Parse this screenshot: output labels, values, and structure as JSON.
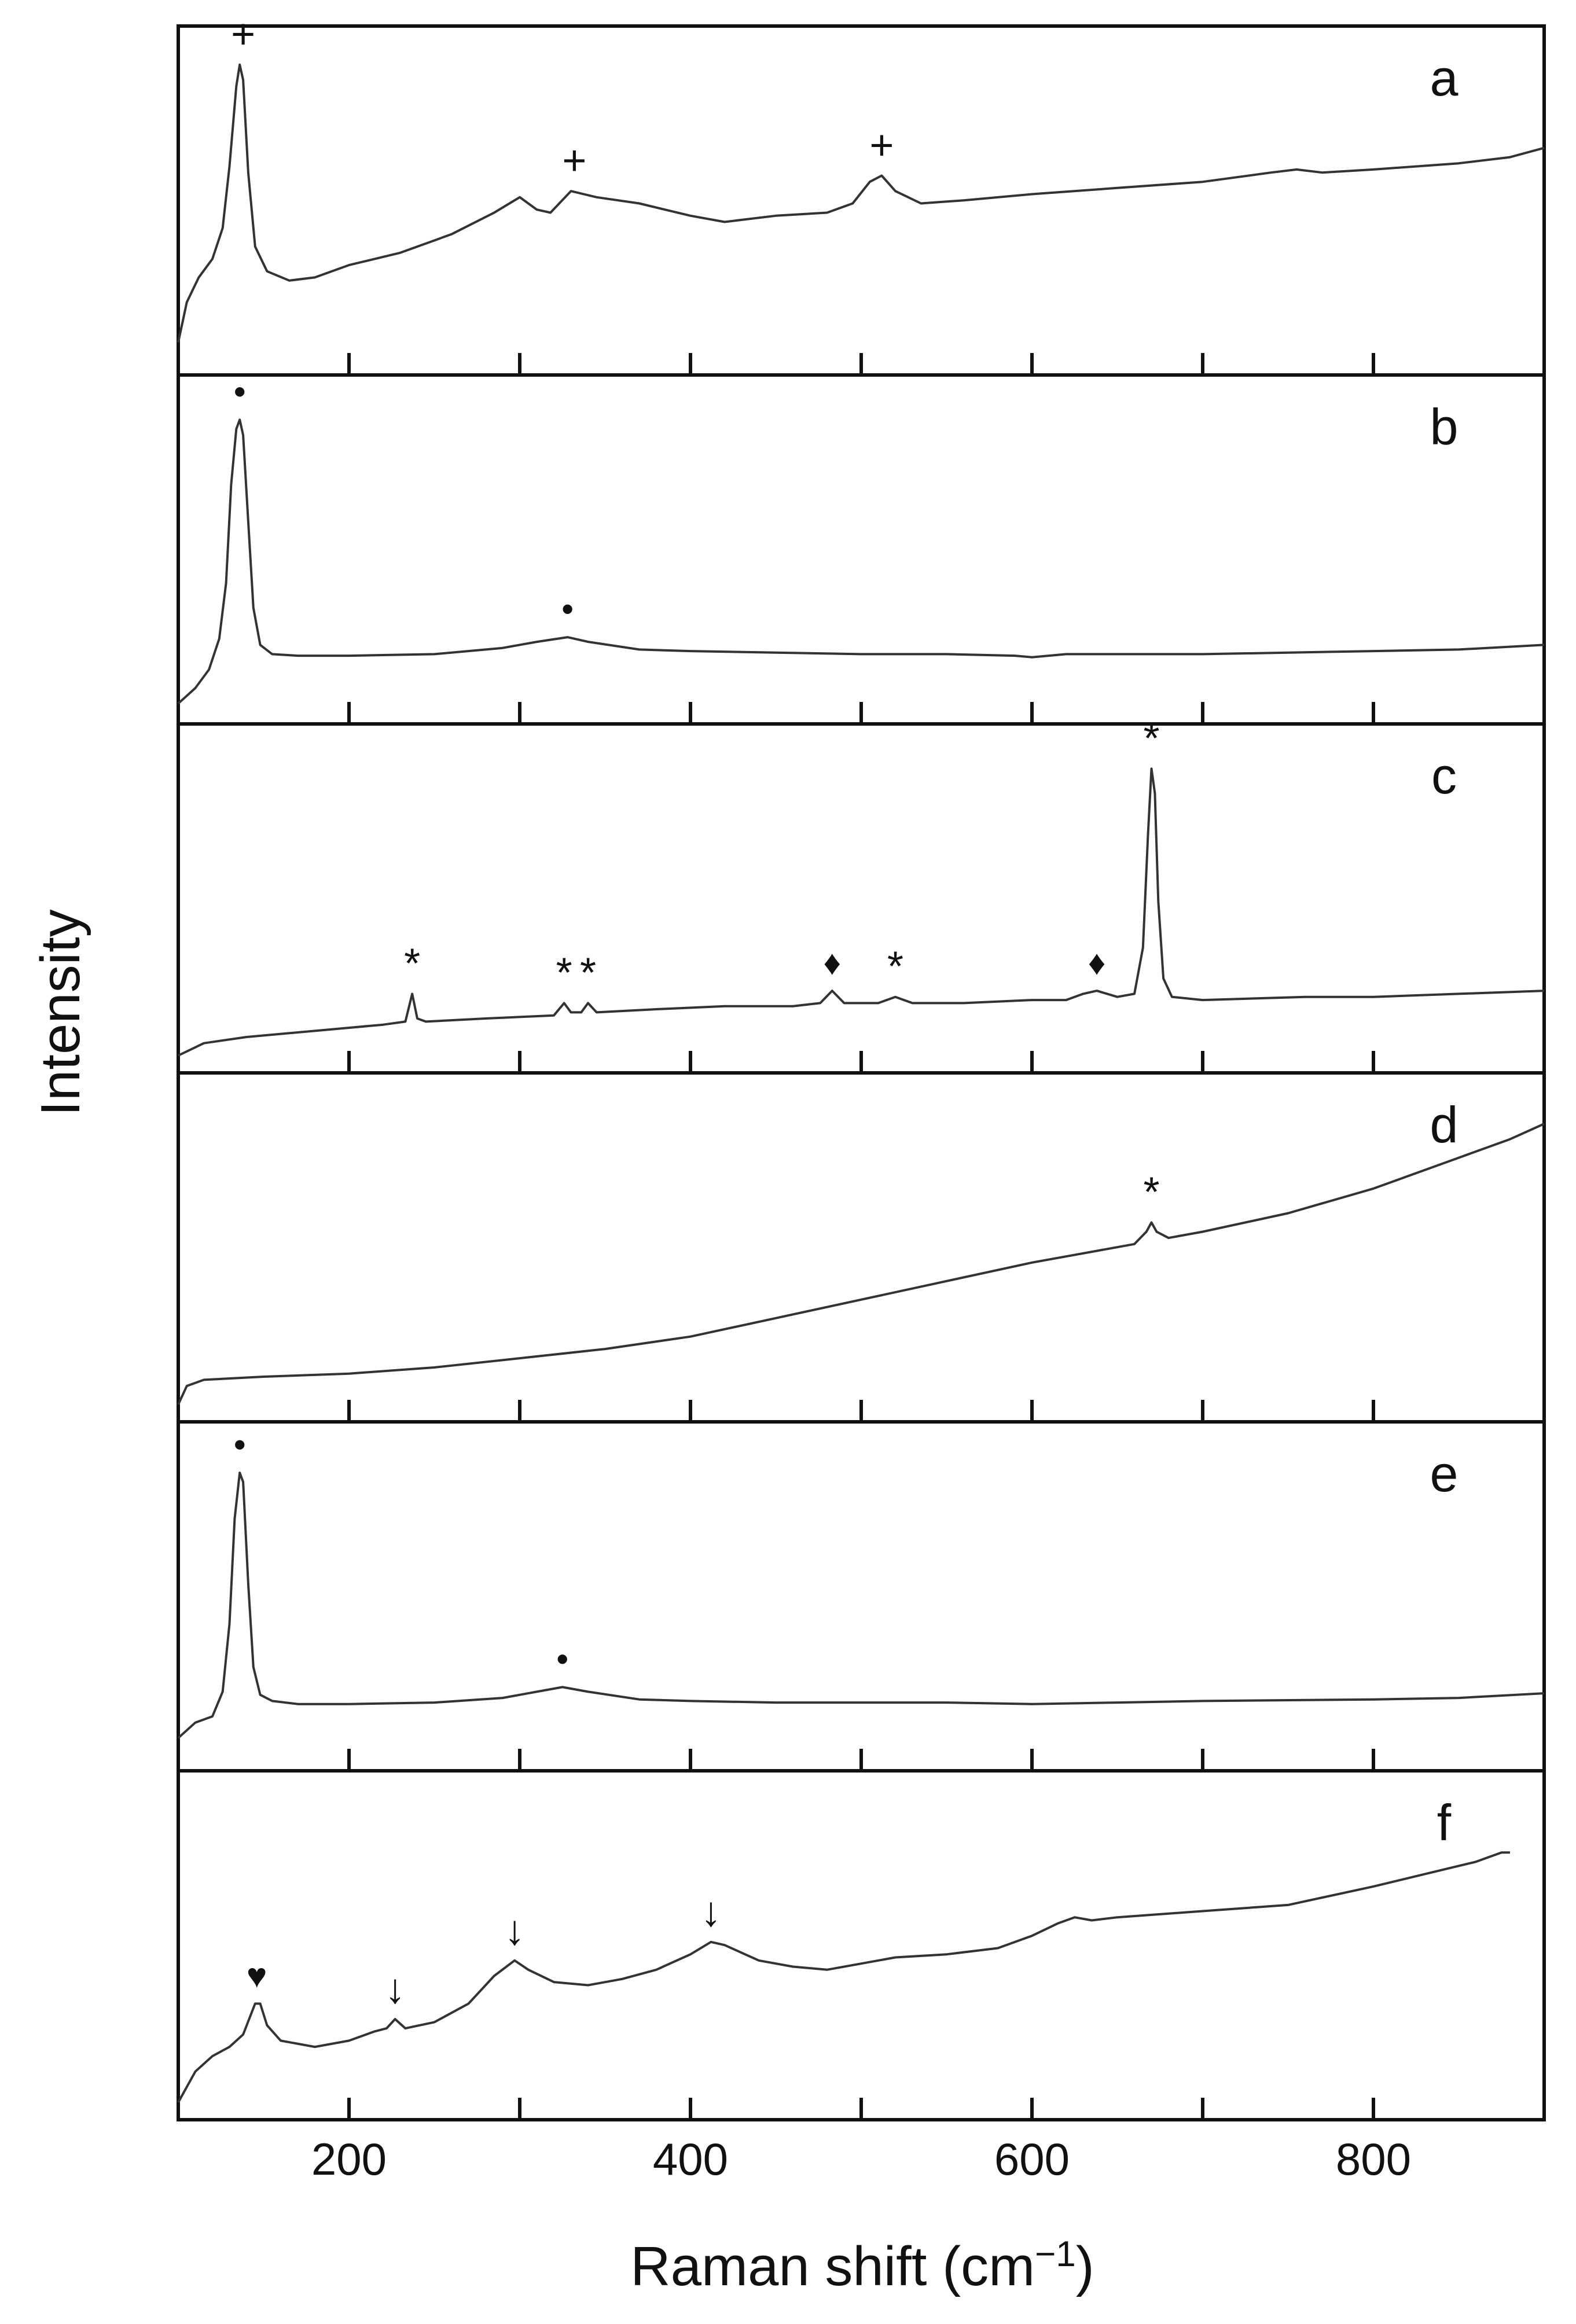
{
  "chart_data": {
    "type": "line",
    "xlabel": "Raman shift",
    "xlabel_unit": "(cm",
    "xlabel_unit_exponent": "−1",
    "ylabel": "Intensity",
    "xlim": [
      100,
      900
    ],
    "x_ticks": [
      200,
      400,
      600,
      800
    ],
    "x_minor_ticks": [
      100,
      200,
      300,
      400,
      500,
      600,
      700,
      800
    ],
    "grid": false,
    "legend": "none",
    "line_color": "#333333",
    "panels": [
      {
        "label": "a",
        "ylim": [
          0,
          1
        ],
        "points": [
          [
            100,
            0.05
          ],
          [
            105,
            0.18
          ],
          [
            112,
            0.26
          ],
          [
            120,
            0.32
          ],
          [
            126,
            0.42
          ],
          [
            130,
            0.62
          ],
          [
            134,
            0.88
          ],
          [
            136,
            0.95
          ],
          [
            138,
            0.9
          ],
          [
            141,
            0.6
          ],
          [
            145,
            0.36
          ],
          [
            152,
            0.28
          ],
          [
            165,
            0.25
          ],
          [
            180,
            0.26
          ],
          [
            200,
            0.3
          ],
          [
            230,
            0.34
          ],
          [
            260,
            0.4
          ],
          [
            285,
            0.47
          ],
          [
            300,
            0.52
          ],
          [
            310,
            0.48
          ],
          [
            318,
            0.47
          ],
          [
            330,
            0.54
          ],
          [
            345,
            0.52
          ],
          [
            370,
            0.5
          ],
          [
            400,
            0.46
          ],
          [
            420,
            0.44
          ],
          [
            450,
            0.46
          ],
          [
            480,
            0.47
          ],
          [
            495,
            0.5
          ],
          [
            505,
            0.57
          ],
          [
            512,
            0.59
          ],
          [
            520,
            0.54
          ],
          [
            535,
            0.5
          ],
          [
            560,
            0.51
          ],
          [
            600,
            0.53
          ],
          [
            650,
            0.55
          ],
          [
            700,
            0.57
          ],
          [
            740,
            0.6
          ],
          [
            755,
            0.61
          ],
          [
            770,
            0.6
          ],
          [
            800,
            0.61
          ],
          [
            850,
            0.63
          ],
          [
            880,
            0.65
          ],
          [
            900,
            0.68
          ]
        ],
        "peak_markers": [
          {
            "symbol": "+",
            "x": 138,
            "y": 0.95
          },
          {
            "symbol": "+",
            "x": 332,
            "y": 0.54
          },
          {
            "symbol": "+",
            "x": 512,
            "y": 0.59
          }
        ]
      },
      {
        "label": "b",
        "ylim": [
          0,
          1
        ],
        "points": [
          [
            100,
            0.01
          ],
          [
            110,
            0.06
          ],
          [
            118,
            0.12
          ],
          [
            124,
            0.22
          ],
          [
            128,
            0.4
          ],
          [
            131,
            0.72
          ],
          [
            134,
            0.9
          ],
          [
            136,
            0.93
          ],
          [
            138,
            0.88
          ],
          [
            141,
            0.6
          ],
          [
            144,
            0.32
          ],
          [
            148,
            0.2
          ],
          [
            155,
            0.17
          ],
          [
            170,
            0.165
          ],
          [
            200,
            0.165
          ],
          [
            250,
            0.17
          ],
          [
            290,
            0.19
          ],
          [
            310,
            0.21
          ],
          [
            328,
            0.225
          ],
          [
            340,
            0.21
          ],
          [
            370,
            0.185
          ],
          [
            400,
            0.18
          ],
          [
            450,
            0.175
          ],
          [
            500,
            0.17
          ],
          [
            550,
            0.17
          ],
          [
            590,
            0.165
          ],
          [
            600,
            0.16
          ],
          [
            620,
            0.17
          ],
          [
            700,
            0.17
          ],
          [
            800,
            0.18
          ],
          [
            850,
            0.185
          ],
          [
            900,
            0.2
          ]
        ],
        "peak_markers": [
          {
            "symbol": "•",
            "x": 136,
            "y": 0.93
          },
          {
            "symbol": "•",
            "x": 328,
            "y": 0.225
          }
        ]
      },
      {
        "label": "c",
        "ylim": [
          0,
          1
        ],
        "points": [
          [
            100,
            0.0
          ],
          [
            115,
            0.04
          ],
          [
            140,
            0.06
          ],
          [
            180,
            0.08
          ],
          [
            220,
            0.1
          ],
          [
            233,
            0.11
          ],
          [
            237,
            0.2
          ],
          [
            240,
            0.12
          ],
          [
            245,
            0.11
          ],
          [
            280,
            0.12
          ],
          [
            320,
            0.13
          ],
          [
            326,
            0.17
          ],
          [
            330,
            0.14
          ],
          [
            336,
            0.14
          ],
          [
            340,
            0.17
          ],
          [
            345,
            0.14
          ],
          [
            380,
            0.15
          ],
          [
            420,
            0.16
          ],
          [
            460,
            0.16
          ],
          [
            476,
            0.17
          ],
          [
            483,
            0.21
          ],
          [
            490,
            0.17
          ],
          [
            510,
            0.17
          ],
          [
            520,
            0.19
          ],
          [
            530,
            0.17
          ],
          [
            560,
            0.17
          ],
          [
            600,
            0.18
          ],
          [
            620,
            0.18
          ],
          [
            630,
            0.2
          ],
          [
            638,
            0.21
          ],
          [
            650,
            0.19
          ],
          [
            660,
            0.2
          ],
          [
            665,
            0.35
          ],
          [
            668,
            0.72
          ],
          [
            670,
            0.93
          ],
          [
            672,
            0.85
          ],
          [
            674,
            0.5
          ],
          [
            677,
            0.25
          ],
          [
            682,
            0.19
          ],
          [
            700,
            0.18
          ],
          [
            760,
            0.19
          ],
          [
            800,
            0.19
          ],
          [
            850,
            0.2
          ],
          [
            900,
            0.21
          ]
        ],
        "peak_markers": [
          {
            "symbol": "*",
            "x": 237,
            "y": 0.2
          },
          {
            "symbol": "*",
            "x": 326,
            "y": 0.17
          },
          {
            "symbol": "*",
            "x": 340,
            "y": 0.17
          },
          {
            "symbol": "♦",
            "x": 483,
            "y": 0.21
          },
          {
            "symbol": "*",
            "x": 520,
            "y": 0.19
          },
          {
            "symbol": "♦",
            "x": 638,
            "y": 0.21
          },
          {
            "symbol": "*",
            "x": 670,
            "y": 0.93
          }
        ]
      },
      {
        "label": "d",
        "ylim": [
          0,
          1
        ],
        "points": [
          [
            100,
            0.0
          ],
          [
            105,
            0.06
          ],
          [
            115,
            0.08
          ],
          [
            150,
            0.09
          ],
          [
            200,
            0.1
          ],
          [
            250,
            0.12
          ],
          [
            300,
            0.15
          ],
          [
            350,
            0.18
          ],
          [
            400,
            0.22
          ],
          [
            450,
            0.28
          ],
          [
            500,
            0.34
          ],
          [
            550,
            0.4
          ],
          [
            600,
            0.46
          ],
          [
            640,
            0.5
          ],
          [
            660,
            0.52
          ],
          [
            667,
            0.56
          ],
          [
            670,
            0.59
          ],
          [
            673,
            0.56
          ],
          [
            680,
            0.54
          ],
          [
            700,
            0.56
          ],
          [
            750,
            0.62
          ],
          [
            800,
            0.7
          ],
          [
            850,
            0.8
          ],
          [
            880,
            0.86
          ],
          [
            900,
            0.91
          ]
        ],
        "peak_markers": [
          {
            "symbol": "*",
            "x": 670,
            "y": 0.59
          }
        ]
      },
      {
        "label": "e",
        "ylim": [
          0,
          1
        ],
        "points": [
          [
            100,
            0.05
          ],
          [
            110,
            0.1
          ],
          [
            120,
            0.12
          ],
          [
            126,
            0.2
          ],
          [
            130,
            0.42
          ],
          [
            133,
            0.76
          ],
          [
            136,
            0.91
          ],
          [
            138,
            0.88
          ],
          [
            141,
            0.55
          ],
          [
            144,
            0.28
          ],
          [
            148,
            0.19
          ],
          [
            155,
            0.17
          ],
          [
            170,
            0.16
          ],
          [
            200,
            0.16
          ],
          [
            250,
            0.165
          ],
          [
            290,
            0.18
          ],
          [
            310,
            0.2
          ],
          [
            325,
            0.215
          ],
          [
            340,
            0.2
          ],
          [
            370,
            0.175
          ],
          [
            400,
            0.17
          ],
          [
            450,
            0.165
          ],
          [
            500,
            0.165
          ],
          [
            550,
            0.165
          ],
          [
            600,
            0.16
          ],
          [
            650,
            0.165
          ],
          [
            700,
            0.17
          ],
          [
            800,
            0.175
          ],
          [
            850,
            0.18
          ],
          [
            900,
            0.195
          ]
        ],
        "peak_markers": [
          {
            "symbol": "•",
            "x": 136,
            "y": 0.91
          },
          {
            "symbol": "•",
            "x": 325,
            "y": 0.215
          }
        ]
      },
      {
        "label": "f",
        "ylim": [
          0,
          1
        ],
        "points": [
          [
            100,
            0.0
          ],
          [
            110,
            0.1
          ],
          [
            120,
            0.15
          ],
          [
            130,
            0.18
          ],
          [
            138,
            0.22
          ],
          [
            145,
            0.32
          ],
          [
            148,
            0.32
          ],
          [
            152,
            0.25
          ],
          [
            160,
            0.2
          ],
          [
            180,
            0.18
          ],
          [
            200,
            0.2
          ],
          [
            215,
            0.23
          ],
          [
            222,
            0.24
          ],
          [
            227,
            0.27
          ],
          [
            233,
            0.24
          ],
          [
            250,
            0.26
          ],
          [
            270,
            0.32
          ],
          [
            285,
            0.41
          ],
          [
            297,
            0.46
          ],
          [
            305,
            0.43
          ],
          [
            320,
            0.39
          ],
          [
            340,
            0.38
          ],
          [
            360,
            0.4
          ],
          [
            380,
            0.43
          ],
          [
            400,
            0.48
          ],
          [
            412,
            0.52
          ],
          [
            420,
            0.51
          ],
          [
            440,
            0.46
          ],
          [
            460,
            0.44
          ],
          [
            480,
            0.43
          ],
          [
            500,
            0.45
          ],
          [
            520,
            0.47
          ],
          [
            550,
            0.48
          ],
          [
            580,
            0.5
          ],
          [
            600,
            0.54
          ],
          [
            615,
            0.58
          ],
          [
            625,
            0.6
          ],
          [
            635,
            0.59
          ],
          [
            650,
            0.6
          ],
          [
            700,
            0.62
          ],
          [
            750,
            0.64
          ],
          [
            800,
            0.7
          ],
          [
            830,
            0.74
          ],
          [
            860,
            0.78
          ],
          [
            875,
            0.81
          ],
          [
            880,
            0.81
          ]
        ],
        "peak_markers": [
          {
            "symbol": "♥",
            "x": 146,
            "y": 0.32
          },
          {
            "symbol": "↓",
            "x": 227,
            "y": 0.27
          },
          {
            "symbol": "↓",
            "x": 297,
            "y": 0.46
          },
          {
            "symbol": "↓",
            "x": 412,
            "y": 0.52
          }
        ]
      }
    ]
  }
}
